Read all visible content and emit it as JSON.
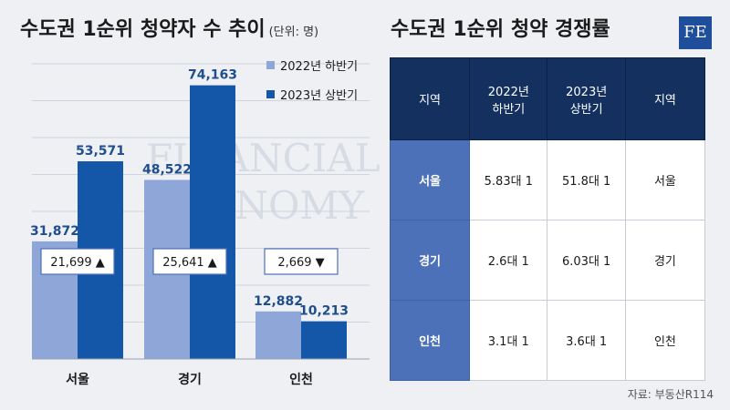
{
  "title_left": "수도권 1순위 청약자 수 추이",
  "unit_label": "(단위: 명)",
  "title_right": "수도권 1순위 청약 경쟁률",
  "logo_text": "FE",
  "source": "자료: 부동산R114",
  "watermark": [
    "FINANCIAL",
    "ECONOMY"
  ],
  "colors": {
    "series_2022": "#8fa6d8",
    "series_2023": "#1456a8",
    "label_text": "#1f4e8c",
    "table_head": "#13305f",
    "table_rowhead": "#4d71b8"
  },
  "chart_data": {
    "type": "bar",
    "categories": [
      "서울",
      "경기",
      "인천"
    ],
    "series": [
      {
        "name": "2022년 하반기",
        "values": [
          31872,
          48522,
          12882
        ],
        "labels": [
          "31,872",
          "48,522",
          "12,882"
        ]
      },
      {
        "name": "2023년 상반기",
        "values": [
          53571,
          74163,
          10213
        ],
        "labels": [
          "53,571",
          "74,163",
          "10,213"
        ]
      }
    ],
    "ylim": [
      0,
      80000
    ],
    "grid": true,
    "legend_position": "top-right",
    "annotations": [
      {
        "category": "서울",
        "text": "21,699",
        "direction": "up",
        "arrow": "▲"
      },
      {
        "category": "경기",
        "text": "25,641",
        "direction": "up",
        "arrow": "▲"
      },
      {
        "category": "인천",
        "text": "2,669",
        "direction": "down",
        "arrow": "▼"
      }
    ]
  },
  "table": {
    "headers": [
      "지역",
      "2022년\n하반기",
      "2023년\n상반기",
      "지역"
    ],
    "rows": [
      {
        "region": "서울",
        "h2022": "5.83대 1",
        "h2023": "51.8대 1",
        "region_right": "서울"
      },
      {
        "region": "경기",
        "h2022": "2.6대 1",
        "h2023": "6.03대 1",
        "region_right": "경기"
      },
      {
        "region": "인천",
        "h2022": "3.1대 1",
        "h2023": "3.6대 1",
        "region_right": "인천"
      }
    ]
  }
}
